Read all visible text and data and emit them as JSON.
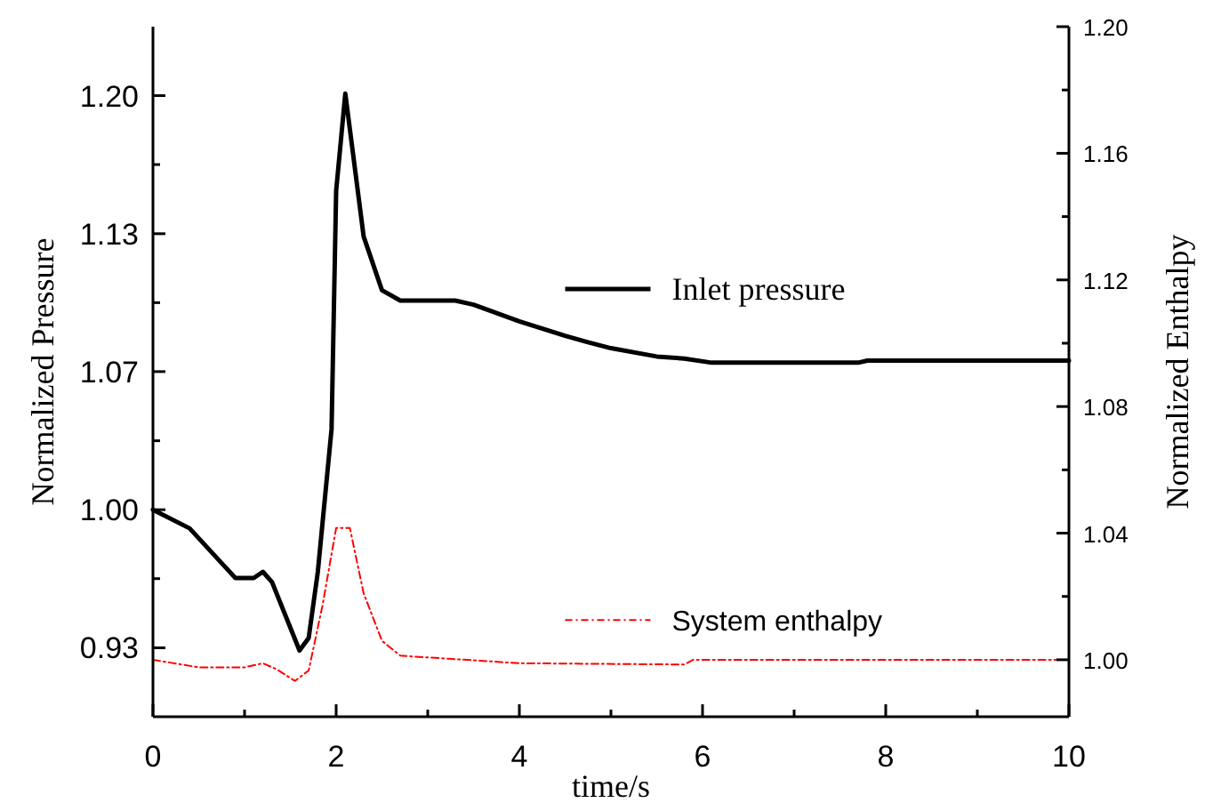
{
  "chart_data": {
    "type": "line",
    "xlabel": "time/s",
    "ylabel": "Normalized Pressure",
    "y2label": "Normalized Enthalpy",
    "xlim": [
      0,
      10
    ],
    "xticks": [
      0,
      {
        "value": 1,
        "label": null
      },
      2,
      {
        "value": 3,
        "label": null
      },
      4,
      {
        "value": 5,
        "label": null
      },
      6,
      {
        "value": 7,
        "label": null
      },
      8,
      {
        "value": 9,
        "label": null
      },
      10
    ],
    "ylim": [
      0.9,
      1.2333
    ],
    "yticks": [
      {
        "value": 0.9333,
        "label": "0.93"
      },
      {
        "value": 0.9667,
        "label": null
      },
      {
        "value": 1.0,
        "label": "1.00"
      },
      {
        "value": 1.0333,
        "label": null
      },
      {
        "value": 1.0667,
        "label": "1.07"
      },
      {
        "value": 1.1,
        "label": null
      },
      {
        "value": 1.1333,
        "label": "1.13"
      },
      {
        "value": 1.1667,
        "label": null
      },
      {
        "value": 1.2,
        "label": "1.20"
      }
    ],
    "y2lim": [
      0.982,
      1.2
    ],
    "y2ticks": [
      {
        "value": 1.0,
        "label": "1.00"
      },
      {
        "value": 1.02,
        "label": null
      },
      1.04,
      {
        "value": 1.06,
        "label": null
      },
      1.08,
      {
        "value": 1.1,
        "label": null
      },
      1.12,
      {
        "value": 1.14,
        "label": null
      },
      1.16,
      {
        "value": 1.18,
        "label": null
      },
      {
        "value": 1.2,
        "label": "1.20"
      }
    ],
    "legend": "right",
    "grid": false,
    "series": [
      {
        "name": "Inlet pressure",
        "color": "#000000",
        "line_style": "solid",
        "x": [
          0,
          0.4,
          0.9,
          1.1,
          1.2,
          1.3,
          1.6,
          1.7,
          1.8,
          1.95,
          2.0,
          2.1,
          2.3,
          2.5,
          2.7,
          3.0,
          3.3,
          3.5,
          4.0,
          4.5,
          4.74,
          5.0,
          5.5,
          5.8,
          6.1,
          7.7,
          7.8,
          10
        ],
        "values": [
          1.0,
          0.991,
          0.967,
          0.967,
          0.97,
          0.965,
          0.932,
          0.938,
          0.97,
          1.039,
          1.154,
          1.201,
          1.132,
          1.106,
          1.101,
          1.101,
          1.101,
          1.099,
          1.091,
          1.084,
          1.081,
          1.078,
          1.074,
          1.073,
          1.071,
          1.071,
          1.072,
          1.072
        ]
      },
      {
        "name": "System enthalpy",
        "color": "#ff0000",
        "line_style": "dashed",
        "axis": "y2",
        "x": [
          0,
          0.5,
          1.0,
          1.2,
          1.35,
          1.55,
          1.7,
          1.85,
          2.0,
          2.15,
          2.3,
          2.5,
          2.7,
          4.0,
          5.8,
          5.9,
          10
        ],
        "values": [
          1.0,
          0.9976,
          0.9976,
          0.9989,
          0.997,
          0.9933,
          0.9966,
          1.017,
          1.0416,
          1.0416,
          1.021,
          1.006,
          1.0013,
          0.9989,
          0.9985,
          1.0,
          1.0
        ]
      }
    ]
  }
}
